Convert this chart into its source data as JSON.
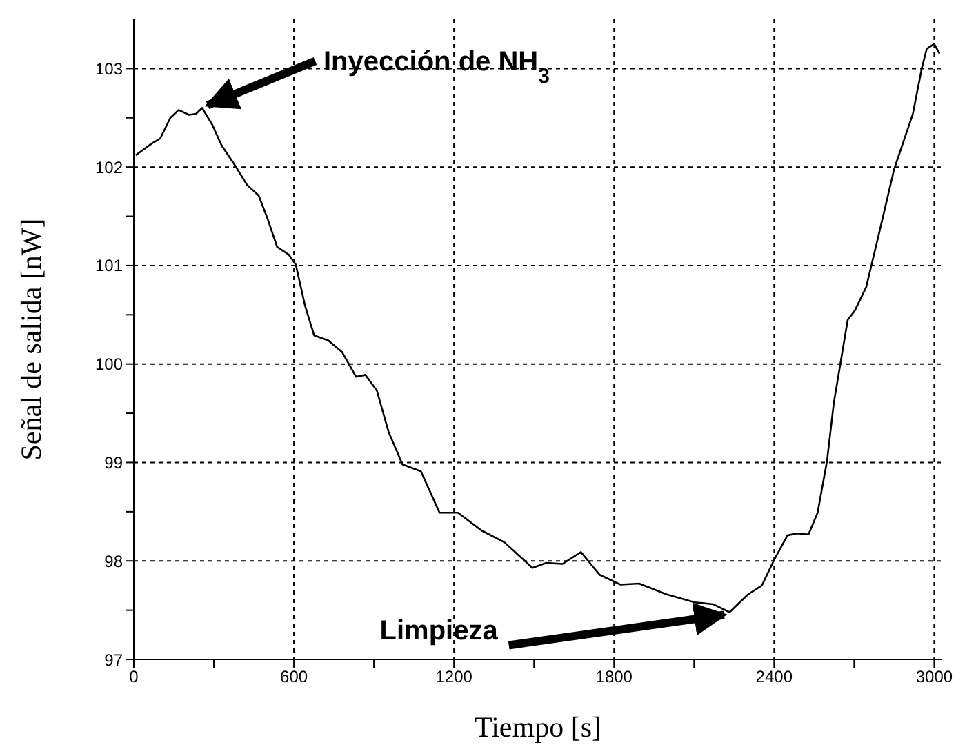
{
  "chart_data": {
    "type": "line",
    "xlabel": "Tiempo [s]",
    "ylabel": "Señal de salida [nW]",
    "x": [
      7,
      68,
      99,
      137,
      168,
      207,
      233,
      256,
      294,
      329,
      381,
      424,
      468,
      502,
      537,
      581,
      607,
      642,
      676,
      729,
      781,
      833,
      868,
      911,
      955,
      1007,
      1076,
      1146,
      1215,
      1303,
      1389,
      1494,
      1546,
      1607,
      1676,
      1746,
      1824,
      1894,
      1998,
      2102,
      2172,
      2233,
      2302,
      2354,
      2398,
      2450,
      2485,
      2529,
      2563,
      2598,
      2624,
      2650,
      2676,
      2702,
      2745,
      2798,
      2850,
      2920,
      2954,
      2972,
      3000,
      3020
    ],
    "series": [
      {
        "color": "#000000",
        "values": [
          102.12,
          102.24,
          102.29,
          102.5,
          102.58,
          102.53,
          102.54,
          102.6,
          102.43,
          102.22,
          102.01,
          101.82,
          101.71,
          101.47,
          101.19,
          101.11,
          101.01,
          100.59,
          100.29,
          100.24,
          100.12,
          99.87,
          99.89,
          99.73,
          99.31,
          98.98,
          98.91,
          98.49,
          98.49,
          98.31,
          98.19,
          97.93,
          97.98,
          97.97,
          98.09,
          97.86,
          97.76,
          97.77,
          97.66,
          97.58,
          97.56,
          97.48,
          97.66,
          97.75,
          98.0,
          98.26,
          98.28,
          98.27,
          98.49,
          99.01,
          99.61,
          100.03,
          100.45,
          100.54,
          100.78,
          101.38,
          101.98,
          102.54,
          103.01,
          103.2,
          103.25,
          103.15
        ]
      }
    ],
    "xlim": [
      0,
      3030
    ],
    "xticks": [
      0,
      {
        "value": 300,
        "label": null
      },
      600,
      {
        "value": 900,
        "label": null
      },
      1200,
      {
        "value": 1500,
        "label": null
      },
      1800,
      {
        "value": 2100,
        "label": null
      },
      2400,
      {
        "value": 2700,
        "label": null
      },
      3000
    ],
    "ylim": [
      97,
      103.5
    ],
    "yticks": [
      97,
      {
        "value": 97.5,
        "label": null
      },
      98,
      {
        "value": 98.5,
        "label": null
      },
      99,
      {
        "value": 99.5,
        "label": null
      },
      100,
      {
        "value": 100.5,
        "label": null
      },
      101,
      {
        "value": 101.5,
        "label": null
      },
      102,
      {
        "value": 102.5,
        "label": null
      },
      103
    ],
    "grid": true,
    "marker": "none",
    "line_style": "solid",
    "annotations": [
      {
        "text": "Inyección de NH$_{3}$",
        "x": 256,
        "y": 102.6
      },
      {
        "text": "Limpieza",
        "x": 2233,
        "y": 97.48
      }
    ]
  }
}
